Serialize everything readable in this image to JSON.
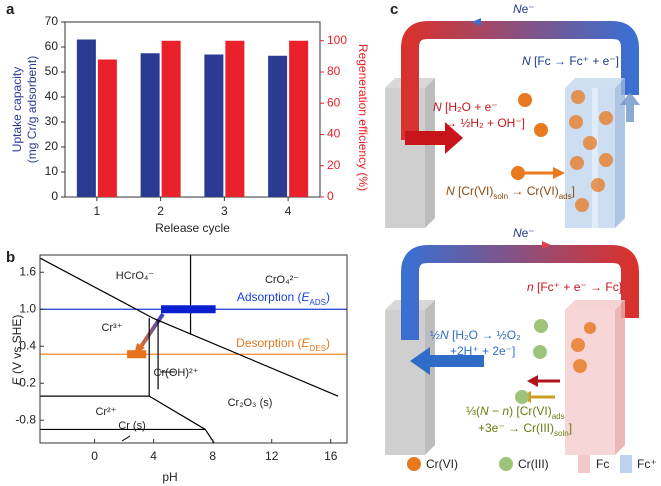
{
  "panel_labels": [
    "a",
    "b",
    "c"
  ],
  "chart_data": [
    {
      "type": "bar",
      "categories": [
        "1",
        "2",
        "3",
        "4"
      ],
      "xlabel": "Release cycle",
      "ylabel": [
        "Uptake capacity",
        "(mg Cr/g adsorbent)"
      ],
      "y2label": "Regeneration efficiency (%)",
      "ylim": [
        0,
        70
      ],
      "yticks": [
        0,
        10,
        20,
        30,
        40,
        50,
        60,
        70
      ],
      "y2lim": [
        0,
        112
      ],
      "y2ticks": [
        0,
        20,
        40,
        60,
        80,
        100
      ],
      "series": [
        {
          "color": "#2b3a93",
          "values": [
            63,
            57.5,
            57,
            56.5
          ]
        },
        {
          "color": "#e8212a",
          "axis": "y2",
          "values": [
            88,
            100,
            100,
            100
          ]
        }
      ]
    },
    {
      "type": "line",
      "xlabel": "pH",
      "ylabel": [
        "E",
        " (V vs SHE)"
      ],
      "xlim": [
        -3.7,
        17.1
      ],
      "xticks": [
        0,
        4,
        8,
        12,
        16
      ],
      "ylim": [
        -1.17,
        1.88
      ],
      "yticks": [
        -0.8,
        -0.2,
        0.4,
        {
          "value": 1,
          "label": "1.0"
        },
        1.6
      ],
      "series": [
        {
          "color": "#000000",
          "x": [
            -3.7,
            4,
            16.5
          ],
          "values": [
            1.83,
            0.85,
            -0.41
          ]
        },
        {
          "color": "#000000",
          "x": [
            6.5,
            6.5
          ],
          "values": [
            1.88,
            0.6
          ]
        },
        {
          "color": "#000000",
          "x": [
            3.7,
            3.7
          ],
          "values": [
            0.86,
            -0.41
          ]
        },
        {
          "color": "#000000",
          "x": [
            4.3,
            4.3
          ],
          "values": [
            0.82,
            -0.3
          ]
        },
        {
          "color": "#000000",
          "x": [
            -3.7,
            3.7
          ],
          "values": [
            -0.41,
            -0.41
          ]
        },
        {
          "color": "#000000",
          "x": [
            3.7,
            7.5
          ],
          "values": [
            -0.41,
            -0.95
          ]
        },
        {
          "color": "#000000",
          "x": [
            -3.7,
            7.5
          ],
          "values": [
            -0.95,
            -0.95
          ]
        },
        {
          "color": "#000000",
          "x": [
            7.5,
            8.1
          ],
          "values": [
            -0.95,
            -1.17
          ]
        }
      ],
      "regions": [
        "HCrO₄⁻",
        "CrO₄²⁻",
        "Cr³⁺",
        "Cr(OH)²⁺",
        "Cr₂O₃ (s)",
        "Cr²⁺",
        "Cr (s)"
      ],
      "potentials": [
        {
          "label": [
            "Adsorption (",
            "E",
            "ADS",
            ")"
          ],
          "value": 1,
          "color": "#1a3fd9"
        },
        {
          "label": [
            "Desorption (",
            "E",
            "DES",
            ")"
          ],
          "value": 0.27,
          "color": "#f08a24"
        }
      ],
      "windows": [
        {
          "xrange": [
            4.5,
            8.2
          ],
          "value": 1,
          "color": "#0a1fd0"
        },
        {
          "xrange": [
            2.2,
            3.5
          ],
          "value": 0.27,
          "color": "#e8731a"
        }
      ]
    }
  ],
  "diagram": {
    "top": {
      "flow": [
        "N",
        "e⁻"
      ],
      "fc": [
        "N",
        " [Fc → Fc⁺ + e⁻]"
      ],
      "water": [
        [
          "N",
          " [H₂O + e⁻"
        ],
        "→ ½H₂ + OH⁻]"
      ],
      "cr": [
        "N",
        " [Cr(VI)",
        "soln",
        " → Cr(VI)",
        "ads",
        "]"
      ]
    },
    "bottom": {
      "flow": [
        "N",
        "e⁻"
      ],
      "fc": [
        "n",
        " [Fc⁺ + e⁻ → Fc]"
      ],
      "water": [
        [
          "½",
          "N",
          " [H₂O → ½O₂"
        ],
        "+2H⁺ + 2e⁻]"
      ],
      "cr": [
        [
          "⅓(",
          "N",
          " − ",
          "n",
          ") [Cr(VI)",
          "ads"
        ],
        [
          "+3e⁻ → Cr(III)",
          "soln",
          "]"
        ]
      ]
    },
    "legend": [
      "Cr(VI)",
      "Cr(III)",
      "Fc",
      "Fc⁺"
    ]
  }
}
